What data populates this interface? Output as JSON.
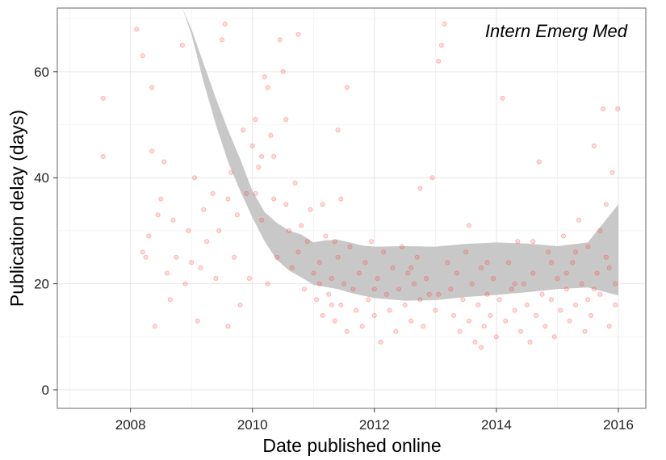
{
  "chart_data": {
    "type": "scatter",
    "title": "",
    "annotation": "Intern Emerg Med",
    "xlabel": "Date published online",
    "ylabel": "Publication delay (days)",
    "x_ticks": [
      "2008",
      "2010",
      "2012",
      "2014",
      "2016"
    ],
    "y_ticks": [
      "0",
      "20",
      "40",
      "60"
    ],
    "xlim": [
      2006.8,
      2016.45
    ],
    "ylim": [
      -3.5,
      72
    ],
    "grid": true,
    "legend": "none",
    "colors": {
      "points": "#ff3333",
      "ribbon": "#c8c8c8",
      "grid_major": "#e6e6e6",
      "grid_minor": "#f2f2f2",
      "panel_border": "#7f7f7f"
    },
    "series": [
      {
        "kind": "points",
        "points": [
          [
            2007.55,
            55
          ],
          [
            2007.55,
            44
          ],
          [
            2008.1,
            68
          ],
          [
            2008.2,
            63
          ],
          [
            2008.2,
            26
          ],
          [
            2008.25,
            25
          ],
          [
            2008.3,
            29
          ],
          [
            2008.35,
            57
          ],
          [
            2008.35,
            45
          ],
          [
            2008.4,
            12
          ],
          [
            2008.45,
            33
          ],
          [
            2008.5,
            36
          ],
          [
            2008.55,
            43
          ],
          [
            2008.6,
            22
          ],
          [
            2008.65,
            17
          ],
          [
            2008.7,
            32
          ],
          [
            2008.75,
            25
          ],
          [
            2008.85,
            65
          ],
          [
            2008.9,
            20
          ],
          [
            2008.95,
            30
          ],
          [
            2009.0,
            24
          ],
          [
            2009.05,
            40
          ],
          [
            2009.1,
            13
          ],
          [
            2009.15,
            23
          ],
          [
            2009.2,
            34
          ],
          [
            2009.25,
            28
          ],
          [
            2009.35,
            37
          ],
          [
            2009.4,
            21
          ],
          [
            2009.45,
            30
          ],
          [
            2009.5,
            66
          ],
          [
            2009.55,
            69
          ],
          [
            2009.6,
            36
          ],
          [
            2009.65,
            41
          ],
          [
            2009.7,
            25
          ],
          [
            2009.75,
            33
          ],
          [
            2009.8,
            16
          ],
          [
            2009.85,
            49
          ],
          [
            2009.9,
            37
          ],
          [
            2009.95,
            21
          ],
          [
            2010.0,
            46
          ],
          [
            2010.05,
            51
          ],
          [
            2010.1,
            42
          ],
          [
            2010.15,
            32
          ],
          [
            2010.2,
            59
          ],
          [
            2010.25,
            57
          ],
          [
            2010.3,
            48
          ],
          [
            2010.35,
            36
          ],
          [
            2010.4,
            25
          ],
          [
            2010.45,
            66
          ],
          [
            2010.5,
            60
          ],
          [
            2010.55,
            51
          ],
          [
            2010.6,
            30
          ],
          [
            2010.65,
            23
          ],
          [
            2010.7,
            39
          ],
          [
            2010.75,
            26
          ],
          [
            2010.8,
            31
          ],
          [
            2010.85,
            19
          ],
          [
            2010.9,
            28
          ],
          [
            2010.95,
            34
          ],
          [
            2011.0,
            22
          ],
          [
            2011.05,
            17
          ],
          [
            2011.1,
            24
          ],
          [
            2011.15,
            14
          ],
          [
            2011.2,
            29
          ],
          [
            2011.25,
            18
          ],
          [
            2011.3,
            21
          ],
          [
            2011.35,
            13
          ],
          [
            2011.4,
            25
          ],
          [
            2011.45,
            16
          ],
          [
            2011.5,
            20
          ],
          [
            2011.55,
            11
          ],
          [
            2011.6,
            27
          ],
          [
            2011.65,
            19
          ],
          [
            2011.7,
            15
          ],
          [
            2011.75,
            22
          ],
          [
            2011.8,
            12
          ],
          [
            2011.85,
            24
          ],
          [
            2011.9,
            17
          ],
          [
            2011.95,
            28
          ],
          [
            2012.0,
            14
          ],
          [
            2012.05,
            21
          ],
          [
            2012.1,
            9
          ],
          [
            2012.15,
            26
          ],
          [
            2012.2,
            18
          ],
          [
            2012.25,
            15
          ],
          [
            2012.3,
            23
          ],
          [
            2012.35,
            11
          ],
          [
            2012.4,
            19
          ],
          [
            2012.45,
            27
          ],
          [
            2012.5,
            16
          ],
          [
            2012.55,
            22
          ],
          [
            2012.6,
            13
          ],
          [
            2012.65,
            20
          ],
          [
            2012.7,
            25
          ],
          [
            2012.75,
            17
          ],
          [
            2012.8,
            12
          ],
          [
            2012.85,
            21
          ],
          [
            2012.9,
            18
          ],
          [
            2012.95,
            40
          ],
          [
            2013.0,
            15
          ],
          [
            2013.05,
            62
          ],
          [
            2013.1,
            65
          ],
          [
            2013.15,
            69
          ],
          [
            2013.2,
            24
          ],
          [
            2013.25,
            19
          ],
          [
            2013.3,
            14
          ],
          [
            2013.35,
            22
          ],
          [
            2013.4,
            11
          ],
          [
            2013.45,
            17
          ],
          [
            2013.5,
            26
          ],
          [
            2013.55,
            13
          ],
          [
            2013.6,
            20
          ],
          [
            2013.65,
            9
          ],
          [
            2013.7,
            16
          ],
          [
            2013.75,
            23
          ],
          [
            2013.8,
            12
          ],
          [
            2013.85,
            18
          ],
          [
            2013.9,
            14
          ],
          [
            2013.95,
            21
          ],
          [
            2014.0,
            10
          ],
          [
            2014.05,
            17
          ],
          [
            2014.1,
            55
          ],
          [
            2014.15,
            13
          ],
          [
            2014.2,
            24
          ],
          [
            2014.25,
            19
          ],
          [
            2014.3,
            15
          ],
          [
            2014.35,
            28
          ],
          [
            2014.4,
            11
          ],
          [
            2014.45,
            20
          ],
          [
            2014.5,
            16
          ],
          [
            2014.55,
            9
          ],
          [
            2014.6,
            22
          ],
          [
            2014.65,
            14
          ],
          [
            2014.7,
            43
          ],
          [
            2014.75,
            18
          ],
          [
            2014.8,
            12
          ],
          [
            2014.85,
            26
          ],
          [
            2014.9,
            17
          ],
          [
            2014.95,
            10
          ],
          [
            2015.0,
            21
          ],
          [
            2015.05,
            15
          ],
          [
            2015.1,
            29
          ],
          [
            2015.15,
            19
          ],
          [
            2015.2,
            13
          ],
          [
            2015.25,
            24
          ],
          [
            2015.3,
            16
          ],
          [
            2015.35,
            32
          ],
          [
            2015.4,
            20
          ],
          [
            2015.45,
            11
          ],
          [
            2015.5,
            27
          ],
          [
            2015.55,
            14
          ],
          [
            2015.6,
            46
          ],
          [
            2015.65,
            22
          ],
          [
            2015.7,
            18
          ],
          [
            2015.75,
            53
          ],
          [
            2015.8,
            25
          ],
          [
            2015.85,
            12
          ],
          [
            2015.9,
            41
          ],
          [
            2015.95,
            20
          ],
          [
            2015.99,
            53
          ],
          [
            2010.05,
            37
          ],
          [
            2010.15,
            44
          ],
          [
            2010.25,
            20
          ],
          [
            2010.75,
            67
          ],
          [
            2010.55,
            35
          ],
          [
            2011.35,
            28
          ],
          [
            2011.45,
            36
          ],
          [
            2011.55,
            57
          ],
          [
            2011.4,
            49
          ],
          [
            2012.75,
            38
          ],
          [
            2013.55,
            31
          ],
          [
            2013.75,
            8
          ],
          [
            2014.6,
            28
          ],
          [
            2015.3,
            26
          ],
          [
            2015.5,
            17
          ],
          [
            2015.7,
            30
          ],
          [
            2015.8,
            35
          ],
          [
            2015.95,
            16
          ],
          [
            2011.1,
            20
          ],
          [
            2011.3,
            16
          ],
          [
            2012.0,
            19
          ],
          [
            2012.6,
            23
          ],
          [
            2013.05,
            18
          ],
          [
            2013.85,
            24
          ],
          [
            2014.3,
            20
          ],
          [
            2014.9,
            24
          ],
          [
            2015.15,
            22
          ],
          [
            2015.6,
            19
          ],
          [
            2015.85,
            23
          ],
          [
            2009.6,
            12
          ],
          [
            2010.35,
            44
          ],
          [
            2011.15,
            35
          ]
        ]
      },
      {
        "kind": "ribbon",
        "x": [
          2008.85,
          2009.0,
          2009.2,
          2009.4,
          2009.6,
          2009.8,
          2010.0,
          2010.2,
          2010.4,
          2010.6,
          2010.8,
          2011.0,
          2011.2,
          2011.4,
          2011.6,
          2011.8,
          2012.0,
          2012.5,
          2013.0,
          2013.5,
          2014.0,
          2014.5,
          2015.0,
          2015.5,
          2016.0
        ],
        "upper": [
          72,
          68,
          61.5,
          55,
          49,
          43.5,
          37.5,
          33.5,
          31.5,
          30,
          29.3,
          27.8,
          28.2,
          28.3,
          27.8,
          27.2,
          27.0,
          27.1,
          27.0,
          27.5,
          27.8,
          27.6,
          27.1,
          27.8,
          35.0
        ],
        "lower": [
          72,
          67,
          58,
          50,
          43,
          37.5,
          32.5,
          28,
          24.5,
          22.5,
          21.2,
          19.8,
          19.4,
          19.0,
          18.3,
          17.8,
          17.3,
          16.8,
          16.9,
          17.5,
          17.9,
          18.4,
          19.0,
          19.3,
          17.8
        ]
      }
    ]
  }
}
